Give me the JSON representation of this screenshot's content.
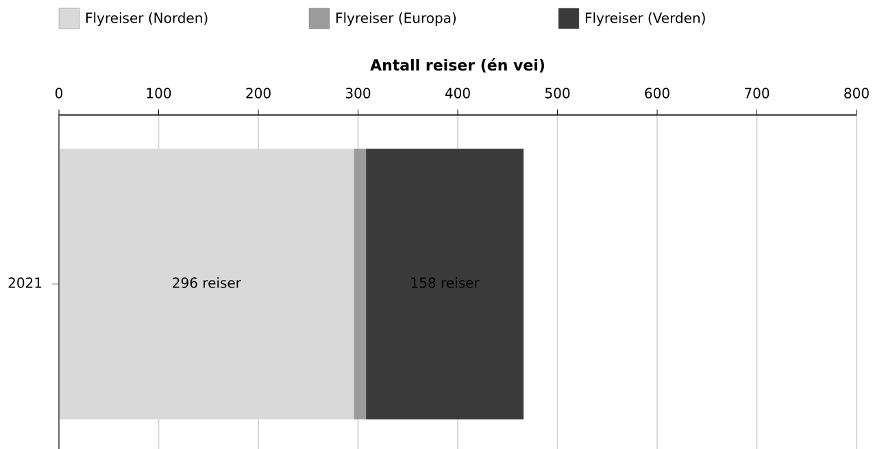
{
  "chart_data": {
    "type": "stacked_bar_horizontal",
    "x_label": "Antall reiser (én vei)",
    "categories": [
      "2021"
    ],
    "series": [
      {
        "name": "Flyreiser (Norden)",
        "color": "#d9d9d9",
        "values": [
          296
        ],
        "value_labels": [
          "296 reiser"
        ]
      },
      {
        "name": "Flyreiser (Europa)",
        "color": "#9b9b9b",
        "values": [
          12
        ]
      },
      {
        "name": "Flyreiser (Verden)",
        "color": "#3a3a3a",
        "values": [
          158
        ],
        "value_labels": [
          "158 reiser"
        ]
      }
    ],
    "xlim": [
      0,
      800
    ],
    "xticks": [
      0,
      100,
      200,
      300,
      400,
      500,
      600,
      700,
      800
    ],
    "grid": true,
    "legend": "top"
  }
}
